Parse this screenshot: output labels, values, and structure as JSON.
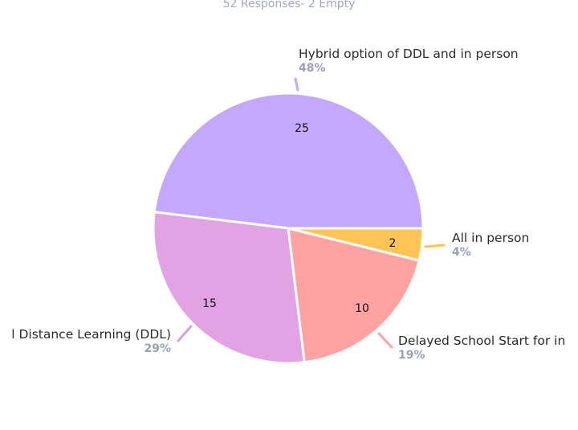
{
  "chart_data": {
    "type": "pie",
    "subtitle": "52 Responses- 2 Empty",
    "slices": [
      {
        "label": "Hybrid option of DDL and in person",
        "value": 25,
        "percent": "48%",
        "color": "#c4a8ff",
        "leader_color": "#c4a8ff"
      },
      {
        "label": "All in person",
        "value": 2,
        "percent": "4%",
        "color": "#ffc455",
        "leader_color": "#ffc455"
      },
      {
        "label": "Delayed School Start for in",
        "value": 10,
        "percent": "19%",
        "color": "#ffa2a2",
        "leader_color": "#ffa2a2"
      },
      {
        "label": "l Distance Learning (DDL)",
        "value": 15,
        "percent": "29%",
        "color": "#e2a3e4",
        "leader_color": "#d9a0e0"
      }
    ]
  }
}
